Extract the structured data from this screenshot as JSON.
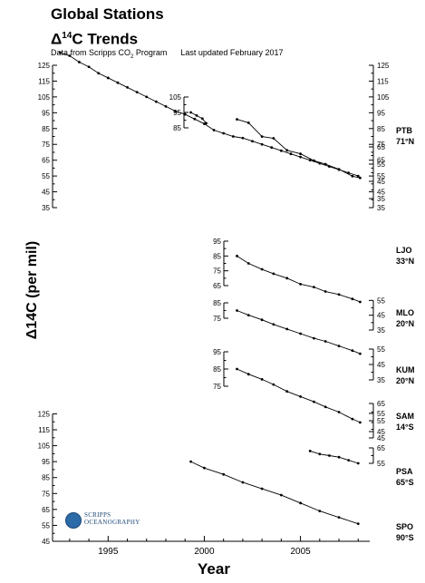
{
  "header": {
    "title_line1": "Global Stations",
    "title_line2_prefix": "Δ",
    "title_line2_sup": "14",
    "title_line2_suffix": "C Trends",
    "subtitle_prefix": "Data from Scripps CO",
    "subtitle_sub": "2",
    "subtitle_suffix": " Program      Last updated February 2017"
  },
  "logo": {
    "line1": "SCRIPPS",
    "line2": "OCEANOGRAPHY"
  },
  "chart_data": {
    "type": "scatter",
    "xlabel": "Year",
    "ylabel": "Δ14C (per mil)",
    "xlim": [
      1992.3,
      2008.6
    ],
    "x_ticks": [
      "1995",
      "2000",
      "2005"
    ],
    "marker_color": "#000000",
    "line_color": "#000000",
    "axes": {
      "right_main": {
        "ticks": [
          125,
          115,
          105,
          95,
          85,
          75,
          65,
          55,
          45,
          35
        ]
      },
      "left_top": {
        "ticks": [
          125,
          115,
          105,
          95,
          85,
          75,
          65,
          55,
          45,
          35
        ]
      },
      "left_bottom": {
        "ticks": [
          125,
          115,
          105,
          95,
          85,
          75,
          65,
          55,
          45
        ]
      },
      "right_bottom": {
        "ticks": [
          95,
          85,
          75,
          65,
          55,
          45
        ]
      }
    },
    "stations": [
      {
        "name": "PTB",
        "lat": "71°N",
        "right_ticks": [
          65,
          55,
          45,
          35
        ],
        "series": [
          {
            "x": [
              2001.7,
              2002.3,
              2003.0,
              2003.6,
              2004.3,
              2005.0,
              2005.7,
              2006.3,
              2007.0,
              2007.7,
              2008.1
            ],
            "y": [
              81,
              79,
              71,
              70,
              63,
              61,
              57,
              55,
              52,
              48,
              47
            ]
          }
        ],
        "inset": {
          "ticks": [
            105,
            95,
            85
          ],
          "x": [
            1999.3,
            1999.6,
            1999.9,
            2000.1
          ],
          "y": [
            95,
            93,
            91,
            88
          ]
        }
      },
      {
        "name": "LJO",
        "lat": "33°N",
        "left_ticks": [
          95,
          85,
          75,
          65
        ],
        "right_ticks": [
          55,
          45,
          35
        ],
        "series": [
          {
            "x": [
              2001.7,
              2002.3,
              2003.0,
              2003.6,
              2004.3,
              2005.0,
              2005.7,
              2006.3,
              2007.0,
              2007.7,
              2008.1
            ],
            "y": [
              85,
              80,
              76,
              73,
              70,
              66,
              64,
              61,
              59,
              56,
              54
            ]
          }
        ]
      },
      {
        "name": "MLO",
        "lat": "20°N",
        "left_ticks": [
          85,
          75
        ],
        "right_ticks": [
          55,
          45,
          35
        ],
        "series": [
          {
            "x": [
              2001.7,
              2002.3,
              2003.0,
              2003.6,
              2004.3,
              2005.0,
              2005.7,
              2006.3,
              2007.0,
              2007.7,
              2008.1
            ],
            "y": [
              80,
              77,
              74,
              71,
              68,
              65,
              62,
              60,
              57,
              54,
              52
            ]
          }
        ]
      },
      {
        "name": "KUM",
        "lat": "20°N",
        "left_ticks": [
          95,
          85,
          75
        ],
        "right_ticks": [
          65,
          55,
          45
        ],
        "series": [
          {
            "x": [
              2001.7,
              2002.3,
              2003.0,
              2003.6,
              2004.3,
              2005.0,
              2005.7,
              2006.3,
              2007.0,
              2007.7,
              2008.1
            ],
            "y": [
              85,
              82,
              79,
              76,
              72,
              69,
              66,
              63,
              60,
              56,
              54
            ]
          }
        ]
      },
      {
        "name": "SAM",
        "lat": "14°S",
        "right_ticks": [
          55,
          45
        ],
        "series": []
      },
      {
        "name": "PSA",
        "lat": "65°S",
        "right_ticks": [
          65,
          55
        ],
        "series": [
          {
            "x": [
              2005.5,
              2006.0,
              2006.5,
              2007.0,
              2007.5,
              2008.0
            ],
            "y": [
              63,
              61,
              60,
              59,
              57,
              55
            ]
          }
        ]
      },
      {
        "name": "SPO",
        "lat": "90°S",
        "series": [
          {
            "x": [
              1999.3,
              2000.0,
              2001.0,
              2002.0,
              2003.0,
              2004.0,
              2005.0,
              2006.0,
              2007.0,
              2008.0
            ],
            "y": [
              95,
              91,
              87,
              82,
              78,
              74,
              69,
              64,
              60,
              56
            ]
          }
        ]
      }
    ],
    "global_series": {
      "x": [
        1992.5,
        1993.0,
        1993.5,
        1994.0,
        1994.5,
        1995.0,
        1995.5,
        1996.0,
        1996.5,
        1997.0,
        1997.5,
        1998.0,
        1998.5,
        1999.0,
        1999.5,
        2000.0,
        2000.5,
        2001.0,
        2001.5,
        2002.0,
        2002.5,
        2003.0,
        2003.5,
        2004.0,
        2004.5,
        2005.0,
        2005.5,
        2006.0,
        2006.5,
        2007.0,
        2007.5,
        2008.0
      ],
      "y": [
        133,
        131,
        127,
        124,
        120,
        117,
        114,
        111,
        108,
        105,
        102,
        99,
        96,
        94,
        91,
        88,
        84,
        82,
        80,
        79,
        77,
        75,
        73,
        71,
        69,
        67,
        65,
        63,
        61,
        59,
        57,
        55
      ]
    }
  }
}
